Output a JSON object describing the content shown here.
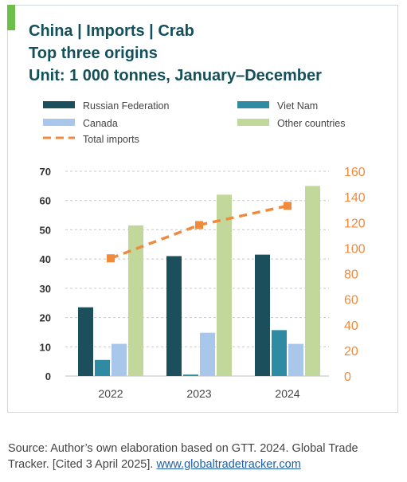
{
  "title_lines": [
    "China | Imports | Crab",
    "Top three origins",
    "Unit: 1 000 tonnes, January–December"
  ],
  "chart_data": {
    "type": "bar",
    "categories": [
      "2022",
      "2023",
      "2024"
    ],
    "series": [
      {
        "name": "Russian Federation",
        "type": "bar",
        "axis": "left",
        "color": "#1b4f5c",
        "values": [
          23.5,
          41,
          41.5
        ]
      },
      {
        "name": "Viet Nam",
        "type": "bar",
        "axis": "left",
        "color": "#2e8ba3",
        "values": [
          5.5,
          0.5,
          15.7
        ]
      },
      {
        "name": "Canada",
        "type": "bar",
        "axis": "left",
        "color": "#a8c7ea",
        "values": [
          11,
          14.8,
          11
        ]
      },
      {
        "name": "Other countries",
        "type": "bar",
        "axis": "left",
        "color": "#c2d89a",
        "values": [
          51.5,
          62,
          65
        ]
      },
      {
        "name": "Total imports",
        "type": "line",
        "style": "dashed",
        "axis": "right",
        "color": "#f08a3c",
        "values": [
          92,
          118,
          133
        ]
      }
    ],
    "y_left": {
      "min": 0,
      "max": 70,
      "ticks": [
        "0",
        "10",
        "20",
        "30",
        "40",
        "50",
        "60",
        "70"
      ]
    },
    "y_right": {
      "min": 0,
      "max": 160,
      "ticks": [
        "0",
        "20",
        "40",
        "60",
        "80",
        "100",
        "120",
        "140",
        "160"
      ]
    },
    "grid": true,
    "legend_position": "top"
  },
  "source": {
    "text": "Source: Author’s own elaboration based on GTT. 2024. Global Trade Tracker. [Cited 3 April 2025]. ",
    "link": "www.globaltradetracker.com"
  }
}
